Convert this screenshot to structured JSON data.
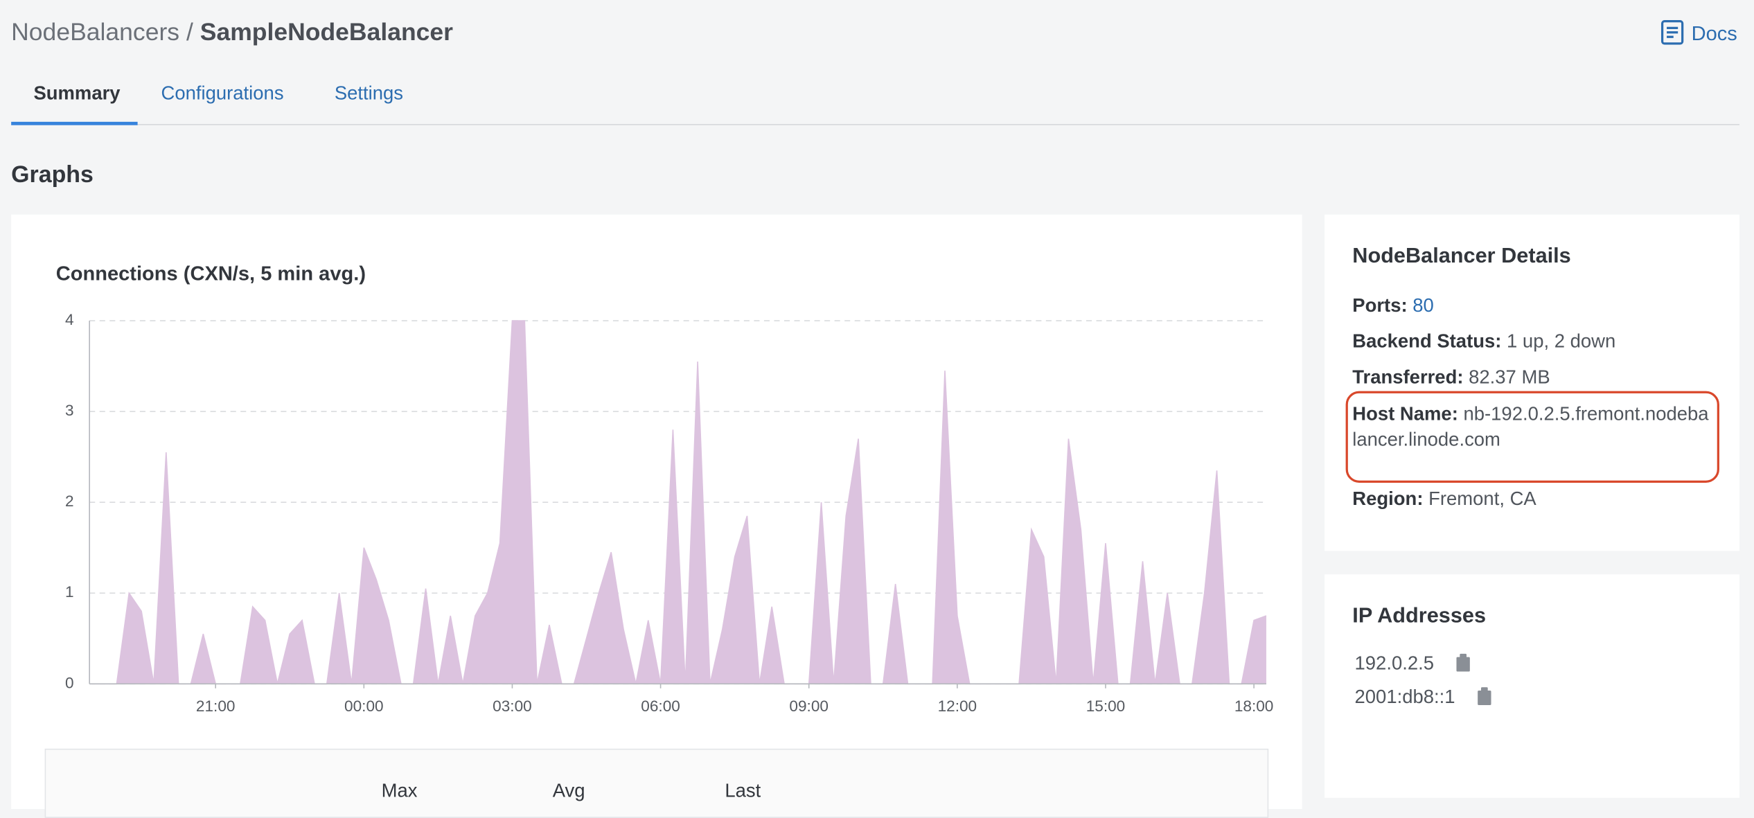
{
  "breadcrumb": {
    "parent": "NodeBalancers",
    "separator": "/",
    "current": "SampleNodeBalancer"
  },
  "docs_link": "Docs",
  "tabs": [
    "Summary",
    "Configurations",
    "Settings"
  ],
  "section_title": "Graphs",
  "chart_data": {
    "type": "area",
    "title": "Connections (CXN/s, 5 min avg.)",
    "color": "#dcc3df",
    "x": [
      0.5,
      0.75,
      1,
      1.25,
      1.5,
      1.75,
      2,
      2.25,
      2.5,
      2.75,
      3,
      3.25,
      3.5,
      3.75,
      4,
      4.25,
      4.5,
      4.75,
      5,
      5.25,
      5.5,
      5.75,
      6,
      6.25,
      6.5,
      6.75,
      7,
      7.25,
      7.5,
      7.75,
      8,
      8.25,
      8.5,
      8.75,
      9,
      9.25,
      9.5,
      9.75,
      10,
      10.25,
      10.5,
      10.75,
      11,
      11.25,
      11.5,
      11.75,
      12,
      12.25,
      12.5,
      12.75,
      13,
      13.25,
      13.5,
      13.75,
      14,
      14.25,
      14.5,
      14.75,
      15,
      15.25,
      15.5,
      15.75,
      16,
      16.25,
      16.5,
      16.75,
      17,
      17.25,
      17.5,
      17.75,
      18,
      18.25,
      18.5,
      18.75,
      19,
      19.25,
      19.5,
      19.75,
      20,
      20.25,
      20.5,
      20.75,
      21,
      21.25,
      21.5,
      21.75,
      22,
      22.25,
      22.5,
      22.75,
      23,
      23.25,
      23.5,
      23.75,
      24,
      24.25
    ],
    "values": [
      0,
      0,
      0,
      1.0,
      0.8,
      0,
      2.55,
      0,
      0,
      0.55,
      0,
      0,
      0,
      0.85,
      0.7,
      0,
      0.55,
      0.7,
      0,
      0,
      1.0,
      0,
      1.5,
      1.15,
      0.7,
      0,
      0,
      1.05,
      0,
      0.75,
      0,
      0.75,
      1.0,
      1.55,
      4.0,
      4.0,
      0,
      0.65,
      0,
      0,
      0.5,
      1.0,
      1.45,
      0.6,
      0,
      0.7,
      0,
      2.8,
      0,
      3.55,
      0,
      0.6,
      1.4,
      1.85,
      0,
      0.85,
      0,
      0,
      0,
      2.0,
      0,
      1.85,
      2.7,
      0,
      0,
      1.1,
      0,
      0,
      0,
      3.45,
      0.75,
      0,
      0,
      0,
      0,
      0,
      1.7,
      1.4,
      0,
      2.7,
      1.7,
      0,
      1.55,
      0,
      0,
      1.35,
      0,
      1.0,
      0,
      0,
      1.0,
      2.35,
      0,
      0,
      0.7,
      0.75
    ],
    "xlim": [
      0.45,
      24.25
    ],
    "xticks": [
      {
        "value": 3,
        "label": "21:00"
      },
      {
        "value": 6,
        "label": "00:00"
      },
      {
        "value": 9,
        "label": "03:00"
      },
      {
        "value": 12,
        "label": "06:00"
      },
      {
        "value": 15,
        "label": "09:00"
      },
      {
        "value": 18,
        "label": "12:00"
      },
      {
        "value": 21,
        "label": "15:00"
      },
      {
        "value": 24,
        "label": "18:00"
      }
    ],
    "ylim": [
      0,
      4
    ],
    "yticks": [
      0,
      1,
      2,
      3,
      4
    ],
    "grid": true
  },
  "summary_table": {
    "headers": [
      "Max",
      "Avg",
      "Last"
    ]
  },
  "details": {
    "title": "NodeBalancer Details",
    "rows": [
      {
        "label": "Ports:",
        "value": "80"
      },
      {
        "label": "Backend Status:",
        "value": "1 up, 2 down"
      },
      {
        "label": "Transferred:",
        "value": "82.37 MB"
      },
      {
        "label": "Host Name:",
        "value": "nb-192.0.2.5.fremont.nodebalancer.linode.com"
      },
      {
        "label": "Region:",
        "value": "Fremont, CA"
      }
    ]
  },
  "ip_addresses": {
    "title": "IP Addresses",
    "items": [
      "192.0.2.5",
      "2001:db8::1"
    ]
  }
}
